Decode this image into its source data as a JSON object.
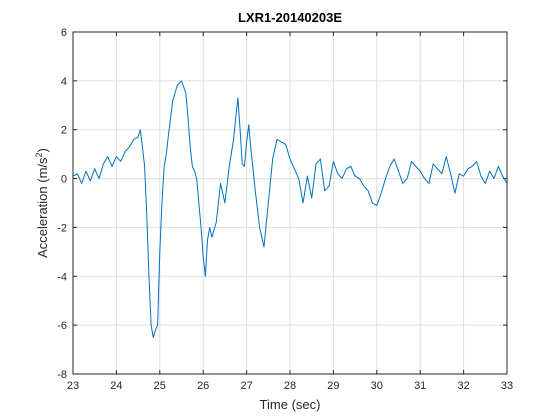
{
  "chart_data": {
    "type": "line",
    "title": "LXR1-20140203E",
    "xlabel": "Time (sec)",
    "ylabel_base": "Acceleration (m/s",
    "ylabel_sup": "2",
    "ylabel_close": ")",
    "xlim": [
      23,
      33
    ],
    "ylim": [
      -8,
      6
    ],
    "xticks": [
      23,
      24,
      25,
      26,
      27,
      28,
      29,
      30,
      31,
      32,
      33
    ],
    "yticks": [
      -8,
      -6,
      -4,
      -2,
      0,
      2,
      4,
      6
    ],
    "grid": true,
    "line_color": "#0072bd",
    "series": [
      {
        "x": [
          23.0,
          23.1,
          23.2,
          23.3,
          23.4,
          23.5,
          23.6,
          23.7,
          23.8,
          23.9,
          24.0,
          24.1,
          24.2,
          24.3,
          24.4,
          24.5,
          24.55,
          24.6,
          24.65,
          24.7,
          24.75,
          24.8,
          24.85,
          24.9,
          24.95,
          25.0,
          25.05,
          25.1,
          25.15,
          25.2,
          25.3,
          25.4,
          25.5,
          25.6,
          25.65,
          25.7,
          25.75,
          25.8,
          25.85,
          25.9,
          25.95,
          26.0,
          26.05,
          26.1,
          26.15,
          26.2,
          26.3,
          26.4,
          26.5,
          26.6,
          26.7,
          26.75,
          26.8,
          26.85,
          26.9,
          26.95,
          27.0,
          27.05,
          27.1,
          27.2,
          27.3,
          27.4,
          27.5,
          27.6,
          27.7,
          27.8,
          27.9,
          28.0,
          28.1,
          28.2,
          28.3,
          28.4,
          28.5,
          28.6,
          28.7,
          28.8,
          28.9,
          29.0,
          29.1,
          29.2,
          29.3,
          29.4,
          29.5,
          29.6,
          29.7,
          29.8,
          29.9,
          30.0,
          30.1,
          30.2,
          30.3,
          30.4,
          30.5,
          30.6,
          30.7,
          30.8,
          30.9,
          31.0,
          31.1,
          31.2,
          31.3,
          31.4,
          31.5,
          31.6,
          31.7,
          31.8,
          31.9,
          32.0,
          32.1,
          32.2,
          32.3,
          32.4,
          32.5,
          32.6,
          32.7,
          32.8,
          32.9,
          33.0
        ],
        "y": [
          0.1,
          0.2,
          -0.2,
          0.3,
          -0.1,
          0.4,
          0.0,
          0.6,
          0.9,
          0.5,
          0.9,
          0.7,
          1.1,
          1.3,
          1.6,
          1.7,
          2.0,
          1.3,
          0.5,
          -1.5,
          -4.0,
          -6.0,
          -6.5,
          -6.2,
          -6.0,
          -3.0,
          -1.0,
          0.5,
          1.0,
          1.8,
          3.2,
          3.8,
          4.0,
          3.5,
          2.5,
          1.3,
          0.5,
          0.3,
          0.0,
          -1.0,
          -2.0,
          -3.2,
          -4.0,
          -2.5,
          -2.0,
          -2.4,
          -1.8,
          -0.2,
          -1.0,
          0.5,
          1.6,
          2.5,
          3.3,
          2.0,
          0.6,
          0.5,
          1.5,
          2.2,
          1.2,
          -0.5,
          -2.0,
          -2.8,
          -1.0,
          0.8,
          1.6,
          1.5,
          1.4,
          0.8,
          0.4,
          0.0,
          -1.0,
          0.1,
          -0.8,
          0.6,
          0.8,
          -0.5,
          -0.3,
          0.7,
          0.2,
          0.0,
          0.4,
          0.5,
          0.1,
          0.0,
          -0.3,
          -0.5,
          -1.0,
          -1.1,
          -0.6,
          0.0,
          0.5,
          0.8,
          0.3,
          -0.2,
          0.0,
          0.7,
          0.5,
          0.3,
          0.0,
          -0.2,
          0.6,
          0.4,
          0.2,
          0.9,
          0.2,
          -0.6,
          0.2,
          0.1,
          0.4,
          0.5,
          0.7,
          0.1,
          -0.2,
          0.3,
          0.0,
          0.5,
          0.1,
          -0.2
        ]
      }
    ]
  }
}
